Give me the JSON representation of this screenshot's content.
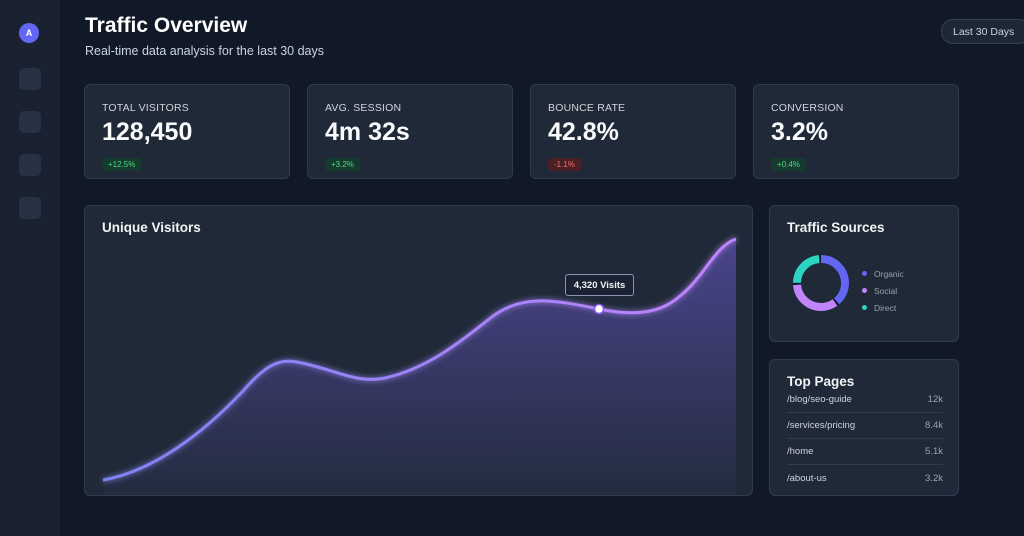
{
  "sidebar": {
    "avatar_letter": "A"
  },
  "header": {
    "title": "Traffic Overview",
    "subtitle": "Real-time data analysis for the last 30 days",
    "range_label": "Last 30 Days"
  },
  "stats": [
    {
      "label": "TOTAL VISITORS",
      "value": "128,450",
      "change": "+12.5%",
      "trend": "up"
    },
    {
      "label": "AVG. SESSION",
      "value": "4m 32s",
      "change": "+3.2%",
      "trend": "up"
    },
    {
      "label": "BOUNCE RATE",
      "value": "42.8%",
      "change": "-1.1%",
      "trend": "down"
    },
    {
      "label": "CONVERSION",
      "value": "3.2%",
      "change": "+0.4%",
      "trend": "up"
    }
  ],
  "visitors_chart": {
    "title": "Unique Visitors",
    "tooltip": "4,320 Visits",
    "line_color": "#8b5cf6"
  },
  "sources": {
    "title": "Traffic Sources",
    "items": [
      {
        "label": "Organic",
        "color": "#6366f1",
        "share": 0.4
      },
      {
        "label": "Social",
        "color": "#c084fc",
        "share": 0.35
      },
      {
        "label": "Direct",
        "color": "#2dd4bf",
        "share": 0.25
      }
    ]
  },
  "top_pages": {
    "title": "Top Pages",
    "rows": [
      {
        "path": "/blog/seo-guide",
        "count": "12k"
      },
      {
        "path": "/services/pricing",
        "count": "8.4k"
      },
      {
        "path": "/home",
        "count": "5.1k"
      },
      {
        "path": "/about-us",
        "count": "3.2k"
      }
    ]
  }
}
